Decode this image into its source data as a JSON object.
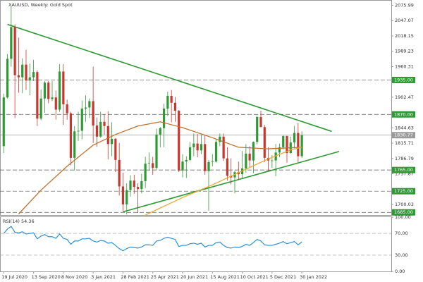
{
  "chart_data": {
    "type": "candlestick",
    "title": "XAUUSD, Weekly:  Gold Spot",
    "categories": [
      "19 Jul 2020",
      null,
      null,
      null,
      null,
      null,
      null,
      null,
      "13 Sep 2020",
      null,
      null,
      null,
      null,
      null,
      null,
      null,
      "8 Nov 2020",
      null,
      null,
      null,
      null,
      null,
      null,
      null,
      "3 Jan 2021",
      null,
      null,
      null,
      null,
      null,
      null,
      null,
      "28 Feb 2021",
      null,
      null,
      null,
      null,
      null,
      null,
      null,
      "25 Apr 2021",
      null,
      null,
      null,
      null,
      null,
      null,
      null,
      "20 Jun 2021",
      null,
      null,
      null,
      null,
      null,
      null,
      null,
      "15 Aug 2021",
      null,
      null,
      null,
      null,
      null,
      null,
      null,
      "10 Oct 2021",
      null,
      null,
      null,
      null,
      null,
      null,
      null,
      "5 Dec 2021",
      null,
      null,
      null,
      null,
      null,
      null,
      null,
      "30 Jan 2022"
    ],
    "open": [
      1810,
      1902,
      1975,
      2035,
      1944,
      1940,
      1964,
      1934,
      1940,
      1950,
      1862,
      1900,
      1930,
      1899,
      1902,
      1879,
      1951,
      1889,
      1872,
      1788,
      1838,
      1839,
      1881,
      1883,
      1895,
      1849,
      1828,
      1856,
      1848,
      1814,
      1824,
      1784,
      1734,
      1700,
      1727,
      1745,
      1733,
      1729,
      1744,
      1777,
      1778,
      1769,
      1832,
      1844,
      1881,
      1905,
      1892,
      1877,
      1764,
      1781,
      1784,
      1808,
      1815,
      1802,
      1814,
      1763,
      1780,
      1781,
      1818,
      1828,
      1787,
      1754,
      1751,
      1761,
      1757,
      1768,
      1796,
      1783,
      1818,
      1865,
      1846,
      1788,
      1783,
      1783,
      1798,
      1808,
      1829,
      1797,
      1817,
      1835,
      1791
    ],
    "high": [
      1909,
      1984,
      2075,
      2040,
      2015,
      1976,
      1992,
      1966,
      1973,
      1953,
      1917,
      1933,
      1933,
      1933,
      1915,
      1965,
      1965,
      1898,
      1875,
      1848,
      1875,
      1896,
      1906,
      1900,
      1960,
      1864,
      1875,
      1870,
      1876,
      1855,
      1825,
      1816,
      1760,
      1740,
      1755,
      1756,
      1740,
      1758,
      1790,
      1798,
      1790,
      1843,
      1846,
      1890,
      1913,
      1916,
      1903,
      1878,
      1795,
      1791,
      1818,
      1834,
      1833,
      1832,
      1832,
      1784,
      1795,
      1823,
      1834,
      1834,
      1808,
      1787,
      1764,
      1781,
      1801,
      1814,
      1810,
      1819,
      1868,
      1877,
      1850,
      1808,
      1793,
      1814,
      1815,
      1831,
      1830,
      1828,
      1848,
      1854,
      1838
    ],
    "low": [
      1797,
      1900,
      1960,
      1863,
      1911,
      1910,
      1916,
      1906,
      1933,
      1848,
      1859,
      1873,
      1891,
      1895,
      1860,
      1875,
      1850,
      1860,
      1774,
      1764,
      1820,
      1823,
      1856,
      1863,
      1816,
      1809,
      1826,
      1832,
      1785,
      1791,
      1761,
      1717,
      1687,
      1681,
      1715,
      1720,
      1684,
      1721,
      1731,
      1764,
      1756,
      1765,
      1808,
      1808,
      1867,
      1855,
      1856,
      1761,
      1751,
      1750,
      1782,
      1791,
      1789,
      1795,
      1756,
      1688,
      1772,
      1779,
      1810,
      1782,
      1745,
      1738,
      1721,
      1746,
      1750,
      1760,
      1770,
      1759,
      1813,
      1847,
      1780,
      1762,
      1769,
      1753,
      1789,
      1804,
      1779,
      1796,
      1806,
      1780,
      1788
    ],
    "close": [
      1902,
      1975,
      2035,
      1944,
      1940,
      1964,
      1934,
      1940,
      1950,
      1862,
      1900,
      1930,
      1899,
      1902,
      1879,
      1951,
      1889,
      1872,
      1788,
      1838,
      1839,
      1881,
      1883,
      1895,
      1849,
      1828,
      1856,
      1848,
      1814,
      1824,
      1784,
      1734,
      1700,
      1727,
      1745,
      1733,
      1729,
      1744,
      1777,
      1778,
      1769,
      1832,
      1844,
      1881,
      1905,
      1892,
      1877,
      1764,
      1781,
      1784,
      1808,
      1815,
      1802,
      1814,
      1763,
      1780,
      1781,
      1818,
      1828,
      1787,
      1754,
      1751,
      1761,
      1757,
      1768,
      1796,
      1783,
      1818,
      1865,
      1846,
      1788,
      1783,
      1783,
      1798,
      1808,
      1829,
      1797,
      1817,
      1835,
      1791,
      1830.77
    ],
    "up_color": "#2e9a34",
    "down_color": "#c8372d",
    "xlim": [
      -1,
      104
    ],
    "ylim": [
      1680,
      2086
    ],
    "yticks": [
      {
        "value": 2075.99,
        "label": "2075.99"
      },
      {
        "value": 2047.07,
        "label": "2047.07"
      },
      {
        "value": 2018.15,
        "label": "2018.15"
      },
      {
        "value": 1989.23,
        "label": "1989.23"
      },
      {
        "value": 1960.31,
        "label": "1960.31"
      },
      {
        "value": 1931.39,
        "label": "1931.39"
      },
      {
        "value": 1902.47,
        "label": "1902.47"
      },
      {
        "value": 1844.63,
        "label": "1844.63"
      },
      {
        "value": 1815.71,
        "label": "1815.71"
      },
      {
        "value": 1786.79,
        "label": "1786.79"
      },
      {
        "value": 1757.87,
        "label": "1757.87"
      },
      {
        "value": 1700.03,
        "label": "1700.03"
      }
    ],
    "levels": [
      {
        "value": 1935,
        "label": "1935.00"
      },
      {
        "value": 1870,
        "label": "1870.00"
      },
      {
        "value": 1765,
        "label": "1765.00"
      },
      {
        "value": 1725,
        "label": "1725.00"
      },
      {
        "value": 1685,
        "label": "1685.00"
      }
    ],
    "level_color": "#2e9a34",
    "current_price": {
      "value": 1830.77,
      "label": "1830.77"
    },
    "moving_averages": [
      {
        "color": "#c0702a",
        "x": [
          4,
          10,
          17,
          24,
          30,
          36,
          42,
          48,
          56,
          63,
          71,
          80
        ],
        "values": [
          1682,
          1727,
          1772,
          1812,
          1832,
          1848,
          1856,
          1845,
          1826,
          1808,
          1805,
          1808
        ]
      },
      {
        "color": "#f0a830",
        "x": [
          38,
          48,
          56,
          63,
          71,
          77,
          80
        ],
        "values": [
          1680,
          1713,
          1737,
          1760,
          1786,
          1803,
          1808
        ]
      }
    ],
    "trendlines": [
      {
        "color": "#2e9a34",
        "x": [
          1,
          88
        ],
        "values": [
          2040,
          1838
        ]
      },
      {
        "color": "#2e9a34",
        "x": [
          32,
          90
        ],
        "values": [
          1686,
          1800
        ]
      }
    ],
    "rsi": {
      "title": "RSI(14) 54.36",
      "color": "#2b8fd8",
      "values": [
        70,
        78,
        83,
        72,
        71,
        73,
        69,
        70,
        71,
        60,
        65,
        68,
        64,
        64,
        61,
        69,
        61,
        59,
        50,
        56,
        56,
        60,
        60,
        61,
        56,
        54,
        57,
        56,
        52,
        53,
        48,
        42,
        38,
        42,
        45,
        44,
        43,
        45,
        49,
        49,
        48,
        56,
        57,
        61,
        63,
        61,
        59,
        46,
        48,
        48,
        51,
        52,
        50,
        52,
        45,
        48,
        48,
        53,
        54,
        48,
        44,
        43,
        45,
        44,
        46,
        50,
        48,
        53,
        59,
        56,
        49,
        48,
        48,
        50,
        52,
        55,
        51,
        53,
        55,
        49,
        54.36
      ],
      "ylim": [
        0,
        100
      ],
      "yticks": [
        {
          "value": 100,
          "label": "100.00"
        },
        {
          "value": 70,
          "label": "70.00"
        },
        {
          "value": 30,
          "label": "30.00"
        },
        {
          "value": 0,
          "label": "0.00"
        }
      ]
    }
  }
}
